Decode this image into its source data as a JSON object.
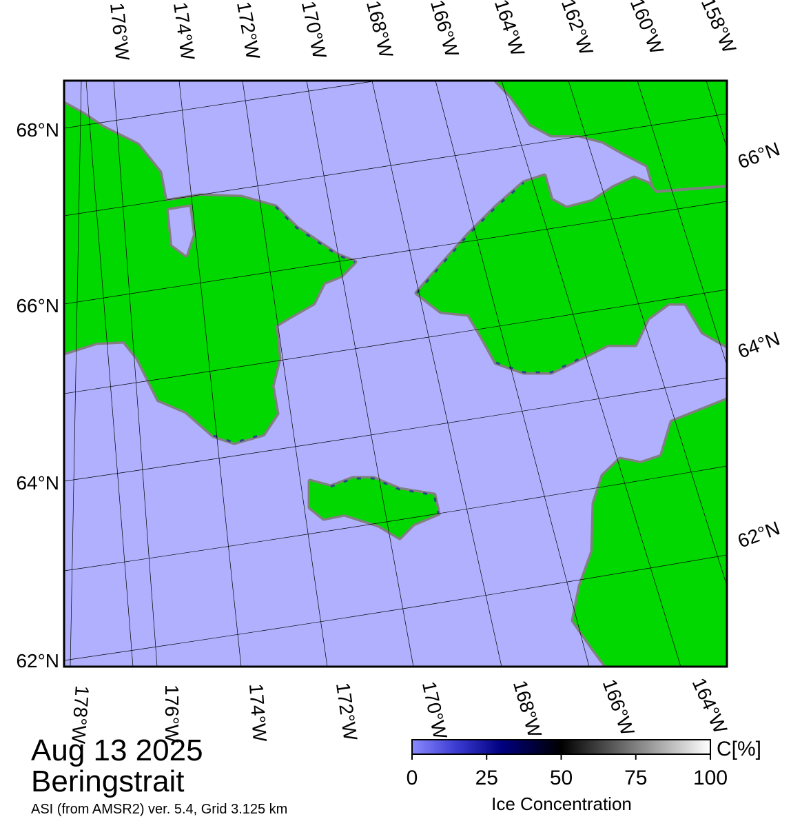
{
  "map": {
    "date": "Aug 13 2025",
    "region": "Beringstrait",
    "source": "ASI (from AMSR2) ver. 5.4,  Grid 3.125 km",
    "top_lon_labels": [
      "176°W",
      "174°W",
      "172°W",
      "170°W",
      "168°W",
      "166°W",
      "164°W",
      "162°W",
      "160°W",
      "158°W"
    ],
    "bottom_lon_labels": [
      "178°W",
      "176°W",
      "174°W",
      "172°W",
      "170°W",
      "168°W",
      "166°W",
      "164°W"
    ],
    "left_lat_labels": [
      "68°N",
      "66°N",
      "64°N",
      "62°N"
    ],
    "right_lat_labels": [
      "66°N",
      "64°N",
      "62°N"
    ]
  },
  "colorbar": {
    "title": "Ice Concentration",
    "unit": "C[%]",
    "lim": [
      0,
      100
    ],
    "ticks": [
      0,
      25,
      50,
      75,
      100
    ]
  }
}
